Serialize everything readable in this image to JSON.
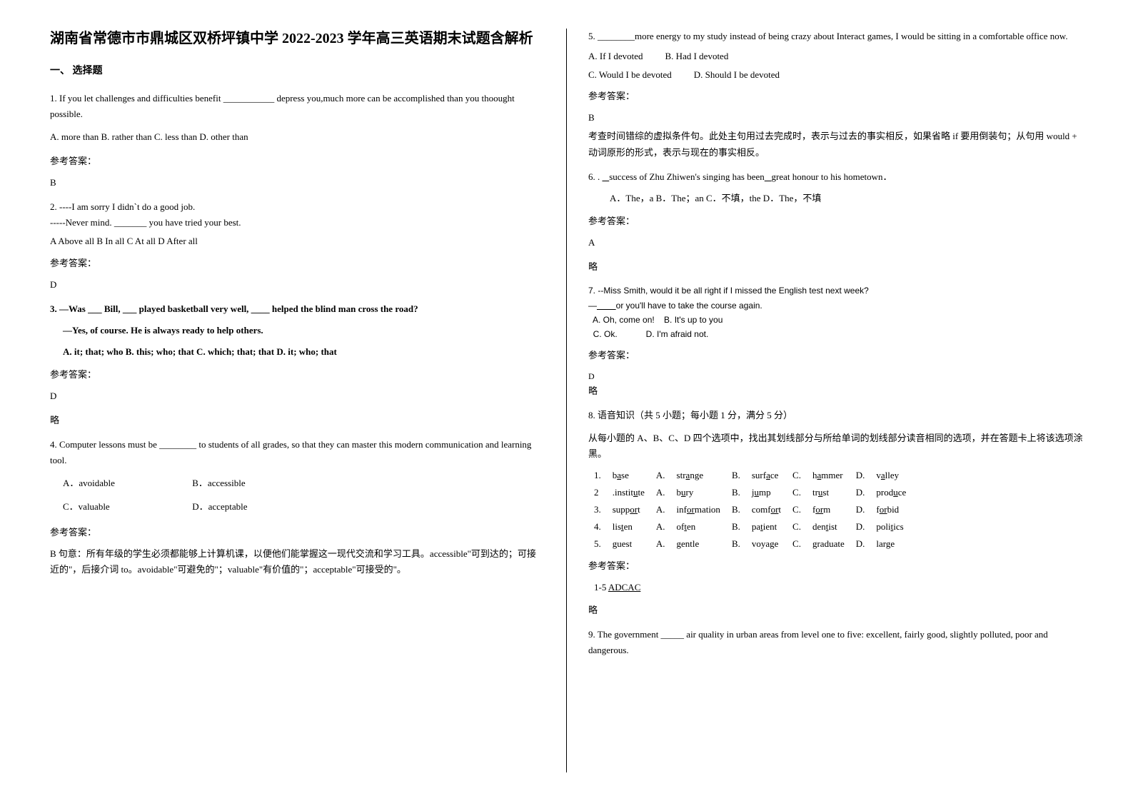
{
  "title": "湖南省常德市市鼎城区双桥坪镇中学 2022-2023 学年高三英语期末试题含解析",
  "section1_heading": "一、 选择题",
  "q1": {
    "text": "1. If you let challenges and difficulties benefit ___________ depress you,much more can be accomplished than you thoought possible.",
    "options": "A. more than    B. rather than    C. less than    D. other than",
    "answer_label": "参考答案：",
    "answer": "B"
  },
  "q2": {
    "line1": "2. ----I am sorry I didn`t do a good job.",
    "line2": "-----Never mind. _______ you have tried your best.",
    "options": "A Above all         B In all            C At all            D After all",
    "answer_label": "参考答案：",
    "answer": "D"
  },
  "q3": {
    "line1": "3. —Was ___ Bill, ___ played basketball very well, ____ helped the blind man cross the road?",
    "line2": "—Yes, of course. He is always ready to help others.",
    "options": "A. it; that; who    B. this; who; that        C. which; that; that    D. it; who; that",
    "answer_label": "参考答案：",
    "answer": "D",
    "note": "略"
  },
  "q4": {
    "text": "4. Computer lessons must be ________ to students of all grades, so that they can master this modern communication and learning tool.",
    "optA": "A．avoidable",
    "optB": "B．accessible",
    "optC": "C．valuable",
    "optD": "D．acceptable",
    "answer_label": "参考答案：",
    "answer": "B   句意：所有年级的学生必须都能够上计算机课，以便他们能掌握这一现代交流和学习工具。accessible\"可到达的；可接近的\"，后接介词 to。avoidable\"可避免的\"；valuable\"有价值的\"；acceptable\"可接受的\"。"
  },
  "q5": {
    "text": "5. ________more energy to my study instead of being crazy about Interact games, I would be sitting in a comfortable office now.",
    "optA": "A. If I devoted",
    "optB": "B. Had I devoted",
    "optC": "C. Would I be devoted",
    "optD": "D. Should I be devoted",
    "answer_label": "参考答案：",
    "answer": "B",
    "note": "考查时间错综的虚拟条件句。此处主句用过去完成时，表示与过去的事实相反，如果省略 if 要用倒装句；从句用 would + 动词原形的形式，表示与现在的事实相反。"
  },
  "q6": {
    "text": "6. .    success of Zhu Zhiwen's singing has been   great honour to his hometown．",
    "options": "A．The，a              B．The；an              C．不填，the            D．The，不填",
    "answer_label": "参考答案：",
    "answer": "A",
    "note": "略"
  },
  "q7": {
    "line1": "7. --Miss Smith, would it be all right if I missed the English test next week?",
    "line2": "—________or you'll have to take the course again.",
    "options1": "  A. Oh, come on!    B. It's up to you",
    "options2": "  C. Ok.            D. I'm afraid not.",
    "answer_label": "参考答案：",
    "answer": "D",
    "note": "略"
  },
  "q8": {
    "heading": "8. 语音知识（共 5 小题；每小题 1 分，满分 5 分）",
    "instruction": "从每小题的 A、B、C、D 四个选项中，找出其划线部分与所给单词的划线部分读音相同的选项，并在答题卡上将该选项涂黑。",
    "rows": [
      {
        "n": "1.",
        "w": "base",
        "wU": "a",
        "A": "A.",
        "Aw": "strange",
        "AwU": "a",
        "B": "B.",
        "Bw": "surface",
        "BwU": "a",
        "C": "C.",
        "Cw": "hammer",
        "CwU": "a",
        "D": "D.",
        "Dw": "valley",
        "DwU": "a"
      },
      {
        "n": "2",
        "w": ".institute",
        "wU": "u",
        "A": "A.",
        "Aw": "bury",
        "AwU": "u",
        "B": "B.",
        "Bw": "jump",
        "BwU": "u",
        "C": "C.",
        "Cw": "trust",
        "CwU": "u",
        "D": "D.",
        "Dw": "produce",
        "DwU": "u"
      },
      {
        "n": "3.",
        "w": "support",
        "wU": "or",
        "A": "A.",
        "Aw": "information",
        "AwU": "or",
        "B": "B.",
        "Bw": "comfort",
        "BwU": "or",
        "C": "C.",
        "Cw": "form",
        "CwU": "or",
        "D": "D.",
        "Dw": "forbid",
        "DwU": "or"
      },
      {
        "n": "4.",
        "w": "listen",
        "wU": "t",
        "A": "A.",
        "Aw": "often",
        "AwU": "t",
        "B": "B.",
        "Bw": "patient",
        "BwU": "t",
        "C": "C.",
        "Cw": "dentist",
        "CwU": "t",
        "D": "D.",
        "Dw": "politics",
        "DwU": "t"
      },
      {
        "n": "5.",
        "w": "guest",
        "wU": "",
        "A": "A.",
        "Aw": "gentle",
        "AwU": "",
        "B": "B.",
        "Bw": "voyage",
        "BwU": "",
        "C": "C.",
        "Cw": "graduate",
        "CwU": "",
        "D": "D.",
        "Dw": "large",
        "DwU": ""
      }
    ],
    "answer_label": "参考答案：",
    "answer": "1-5 ADCAC",
    "note": "略"
  },
  "q9": {
    "text": "9. The government _____ air quality in urban areas from level one to five: excellent, fairly good, slightly polluted, poor and dangerous."
  }
}
